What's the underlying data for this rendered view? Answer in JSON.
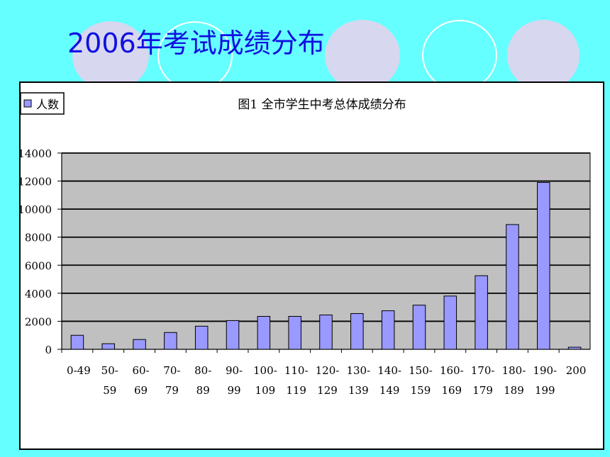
{
  "slide": {
    "title": "2006年考试成绩分布"
  },
  "colors": {
    "background": "#66ffff",
    "title": "#1010e0",
    "bar_fill": "#9999ff",
    "plot_area": "#c0c0c0"
  },
  "chart_data": {
    "type": "bar",
    "title": "图1 全市学生中考总体成绩分布",
    "legend": "top-left",
    "grid": true,
    "ylim": [
      0,
      14000
    ],
    "yticks": [
      0,
      2000,
      4000,
      6000,
      8000,
      10000,
      12000,
      14000
    ],
    "categories": [
      [
        "0-49"
      ],
      [
        "50-",
        "59"
      ],
      [
        "60-",
        "69"
      ],
      [
        "70-",
        "79"
      ],
      [
        "80-",
        "89"
      ],
      [
        "90-",
        "99"
      ],
      [
        "100-",
        "109"
      ],
      [
        "110-",
        "119"
      ],
      [
        "120-",
        "129"
      ],
      [
        "130-",
        "139"
      ],
      [
        "140-",
        "149"
      ],
      [
        "150-",
        "159"
      ],
      [
        "160-",
        "169"
      ],
      [
        "170-",
        "179"
      ],
      [
        "180-",
        "189"
      ],
      [
        "190-",
        "199"
      ],
      [
        "200"
      ]
    ],
    "series": [
      {
        "name": "人数",
        "values": [
          1000,
          400,
          700,
          1200,
          1650,
          2050,
          2350,
          2350,
          2450,
          2550,
          2750,
          3150,
          3800,
          5250,
          8900,
          11900,
          150
        ]
      }
    ]
  }
}
